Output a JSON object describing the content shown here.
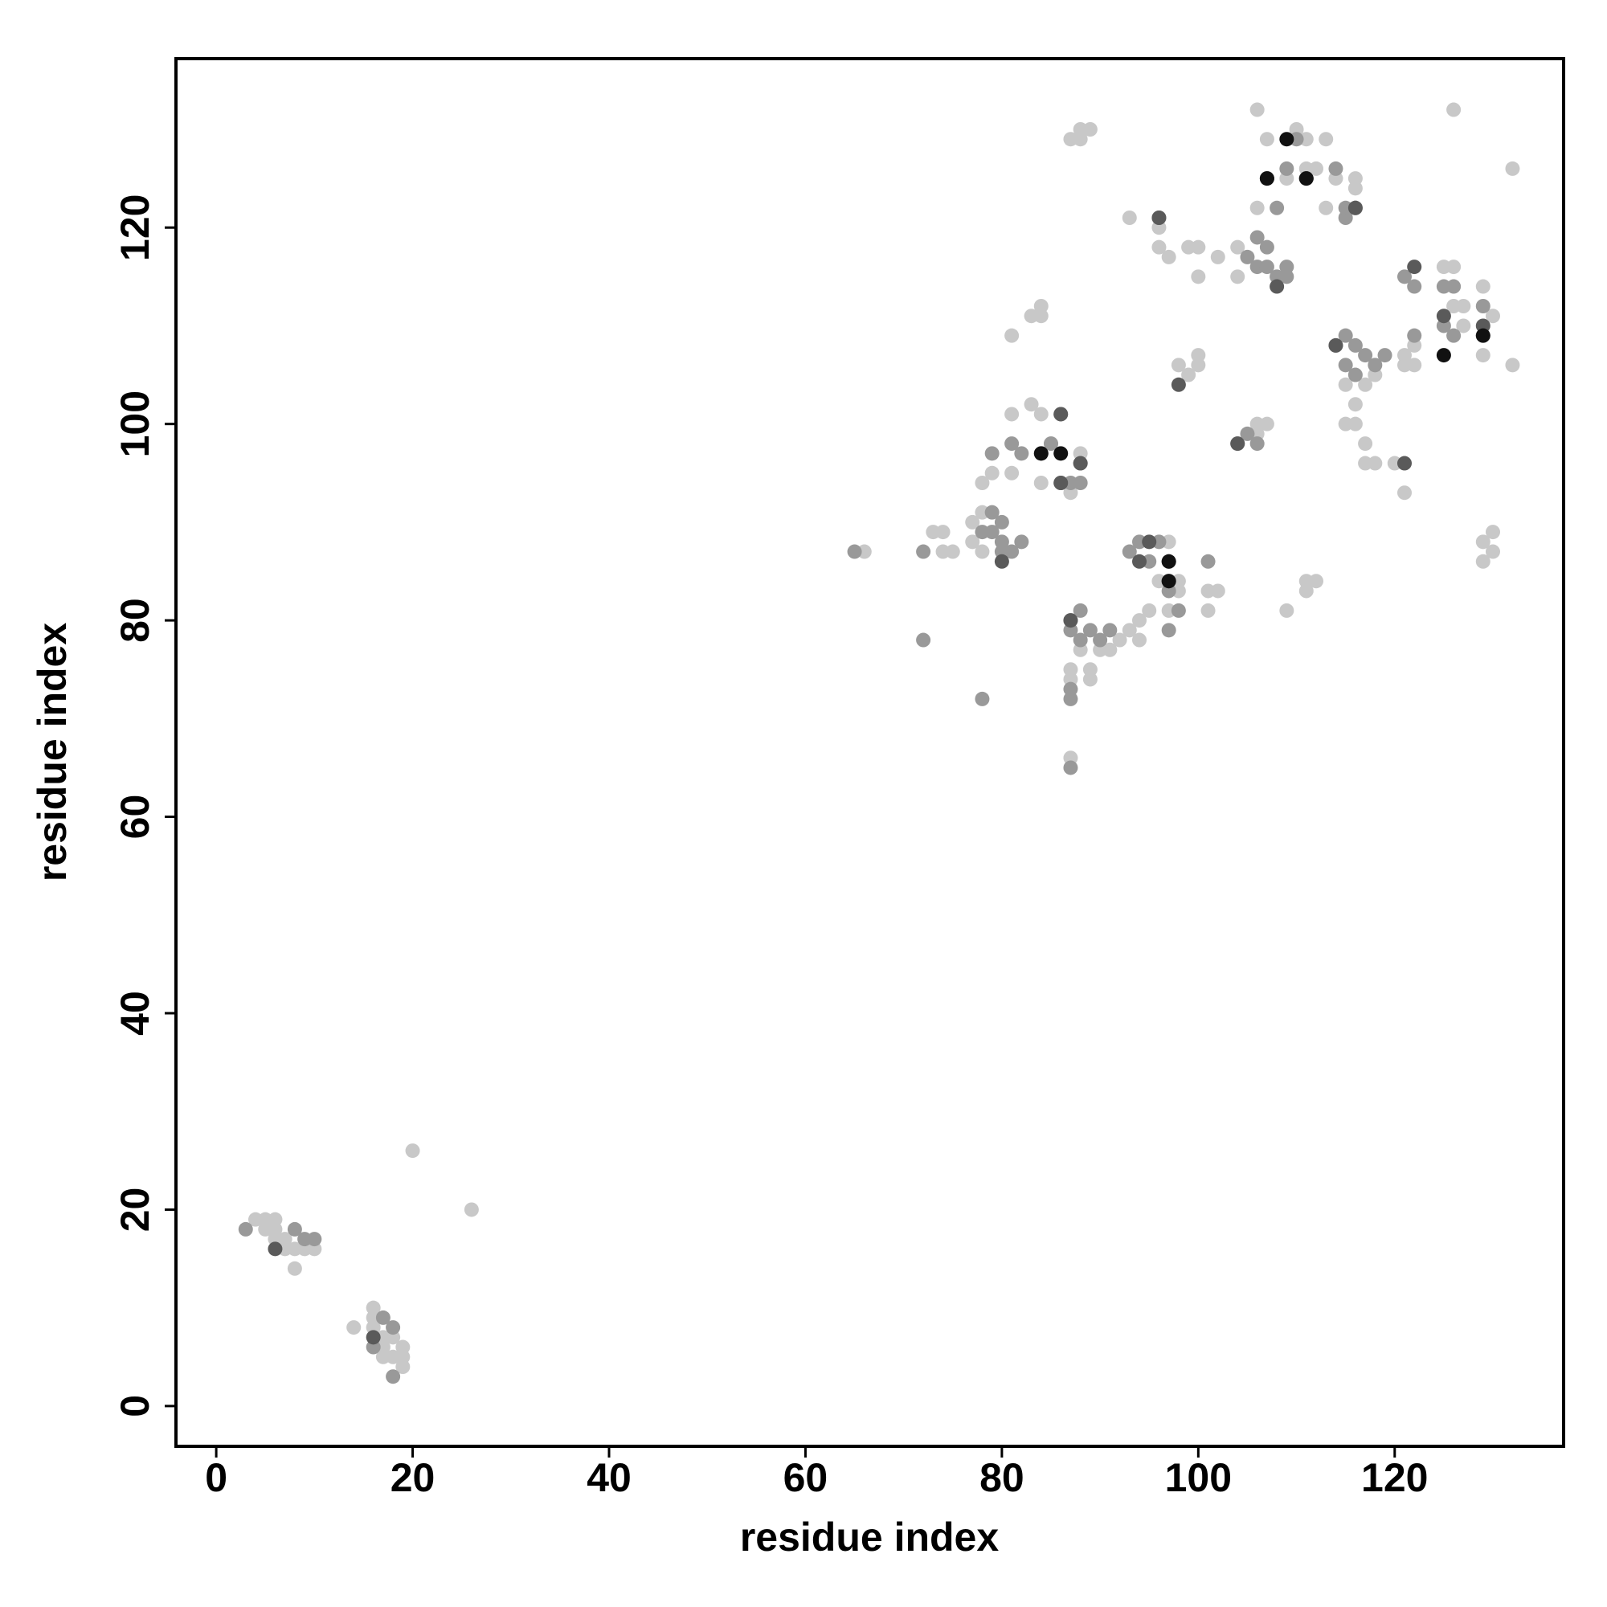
{
  "chart_data": {
    "type": "scatter",
    "xlabel": "residue index",
    "ylabel": "residue index",
    "xlim": [
      -4.1,
      137.2
    ],
    "ylim": [
      -4.1,
      137.2
    ],
    "xticks": [
      0,
      20,
      40,
      60,
      80,
      100,
      120
    ],
    "yticks": [
      0,
      20,
      40,
      60,
      80,
      100,
      120
    ],
    "grid": false,
    "series": [
      {
        "color": "#c8c8c8",
        "x": [
          4,
          5,
          6,
          5,
          6,
          7,
          6,
          8,
          9,
          10,
          8,
          7,
          16,
          16,
          16,
          17,
          17,
          18,
          19,
          19,
          19,
          14,
          18,
          17,
          20,
          26,
          66,
          73,
          74,
          74,
          75,
          77,
          78,
          78,
          79,
          81,
          81,
          83,
          84,
          84,
          83,
          84,
          85,
          84,
          87,
          88,
          88,
          89,
          87,
          88,
          81,
          87,
          87,
          87,
          88,
          89,
          89,
          90,
          91,
          92,
          93,
          96,
          96,
          97,
          99,
          100,
          100,
          102,
          104,
          104,
          106,
          106,
          107,
          109,
          110,
          111,
          111,
          113,
          112,
          114,
          116,
          116,
          113,
          116,
          98,
          99,
          100,
          100,
          106,
          107,
          106,
          101,
          101,
          102,
          97,
          96,
          95,
          94,
          93,
          94,
          98,
          98,
          97,
          109,
          111,
          111,
          112,
          115,
          116,
          116,
          117,
          117,
          118,
          120,
          121,
          115,
          117,
          118,
          121,
          121,
          122,
          122,
          125,
          126,
          126,
          127,
          127,
          129,
          129,
          129,
          129,
          130,
          130,
          126,
          132,
          132,
          130,
          78,
          77
        ],
        "values": [
          19,
          19,
          19,
          18,
          18,
          17,
          17,
          16,
          16,
          16,
          14,
          16,
          10,
          9,
          8,
          7,
          6,
          5,
          6,
          5,
          4,
          8,
          7,
          5,
          26,
          20,
          87,
          89,
          89,
          87,
          87,
          90,
          91,
          94,
          95,
          101,
          95,
          111,
          112,
          111,
          102,
          101,
          98,
          94,
          129,
          130,
          129,
          130,
          93,
          97,
          109,
          66,
          75,
          74,
          77,
          75,
          74,
          77,
          77,
          78,
          121,
          120,
          118,
          117,
          118,
          118,
          115,
          117,
          118,
          115,
          132,
          122,
          129,
          125,
          130,
          129,
          126,
          129,
          126,
          125,
          124,
          125,
          122,
          122,
          106,
          105,
          106,
          107,
          100,
          100,
          99,
          81,
          83,
          83,
          88,
          84,
          81,
          80,
          79,
          78,
          84,
          83,
          81,
          81,
          83,
          84,
          84,
          100,
          102,
          100,
          96,
          98,
          96,
          96,
          93,
          104,
          104,
          105,
          106,
          107,
          108,
          106,
          116,
          116,
          112,
          112,
          110,
          114,
          107,
          86,
          88,
          89,
          87,
          132,
          126,
          106,
          111,
          87,
          88
        ]
      },
      {
        "color": "#999999",
        "x": [
          3,
          8,
          9,
          10,
          16,
          18,
          17,
          18,
          65,
          72,
          72,
          78,
          79,
          79,
          79,
          80,
          81,
          78,
          80,
          82,
          81,
          82,
          84,
          86,
          85,
          86,
          88,
          88,
          87,
          87,
          88,
          88,
          89,
          90,
          91,
          87,
          87,
          87,
          93,
          94,
          95,
          96,
          97,
          98,
          97,
          101,
          96,
          104,
          105,
          106,
          105,
          106,
          106,
          107,
          107,
          108,
          109,
          109,
          108,
          107,
          109,
          110,
          111,
          114,
          114,
          115,
          115,
          116,
          116,
          117,
          118,
          119,
          115,
          115,
          116,
          121,
          122,
          122,
          125,
          125,
          126,
          126,
          129,
          129,
          80,
          87
        ],
        "values": [
          18,
          18,
          17,
          17,
          6,
          8,
          9,
          3,
          87,
          87,
          78,
          72,
          97,
          91,
          89,
          88,
          87,
          89,
          90,
          88,
          98,
          97,
          97,
          101,
          98,
          94,
          94,
          96,
          80,
          79,
          81,
          78,
          79,
          78,
          79,
          72,
          73,
          65,
          87,
          88,
          86,
          88,
          83,
          81,
          79,
          86,
          121,
          98,
          99,
          98,
          117,
          116,
          119,
          118,
          116,
          115,
          116,
          115,
          122,
          125,
          126,
          129,
          125,
          126,
          108,
          109,
          106,
          108,
          105,
          107,
          106,
          107,
          121,
          122,
          122,
          115,
          114,
          109,
          114,
          110,
          114,
          109,
          112,
          109,
          87,
          94
        ]
      },
      {
        "color": "#5a5a5a",
        "x": [
          6,
          16,
          86,
          86,
          96,
          97,
          97,
          98,
          104,
          107,
          108,
          111,
          114,
          116,
          121,
          122,
          125,
          129,
          88,
          80,
          87,
          95,
          94
        ],
        "values": [
          16,
          7,
          94,
          101,
          121,
          86,
          84,
          104,
          98,
          125,
          114,
          125,
          108,
          122,
          96,
          116,
          111,
          110,
          96,
          86,
          80,
          88,
          86
        ]
      },
      {
        "color": "#111111",
        "x": [
          84,
          86,
          97,
          97,
          109,
          107,
          125,
          129,
          111
        ],
        "values": [
          97,
          97,
          86,
          84,
          129,
          125,
          107,
          109,
          125
        ]
      }
    ]
  }
}
